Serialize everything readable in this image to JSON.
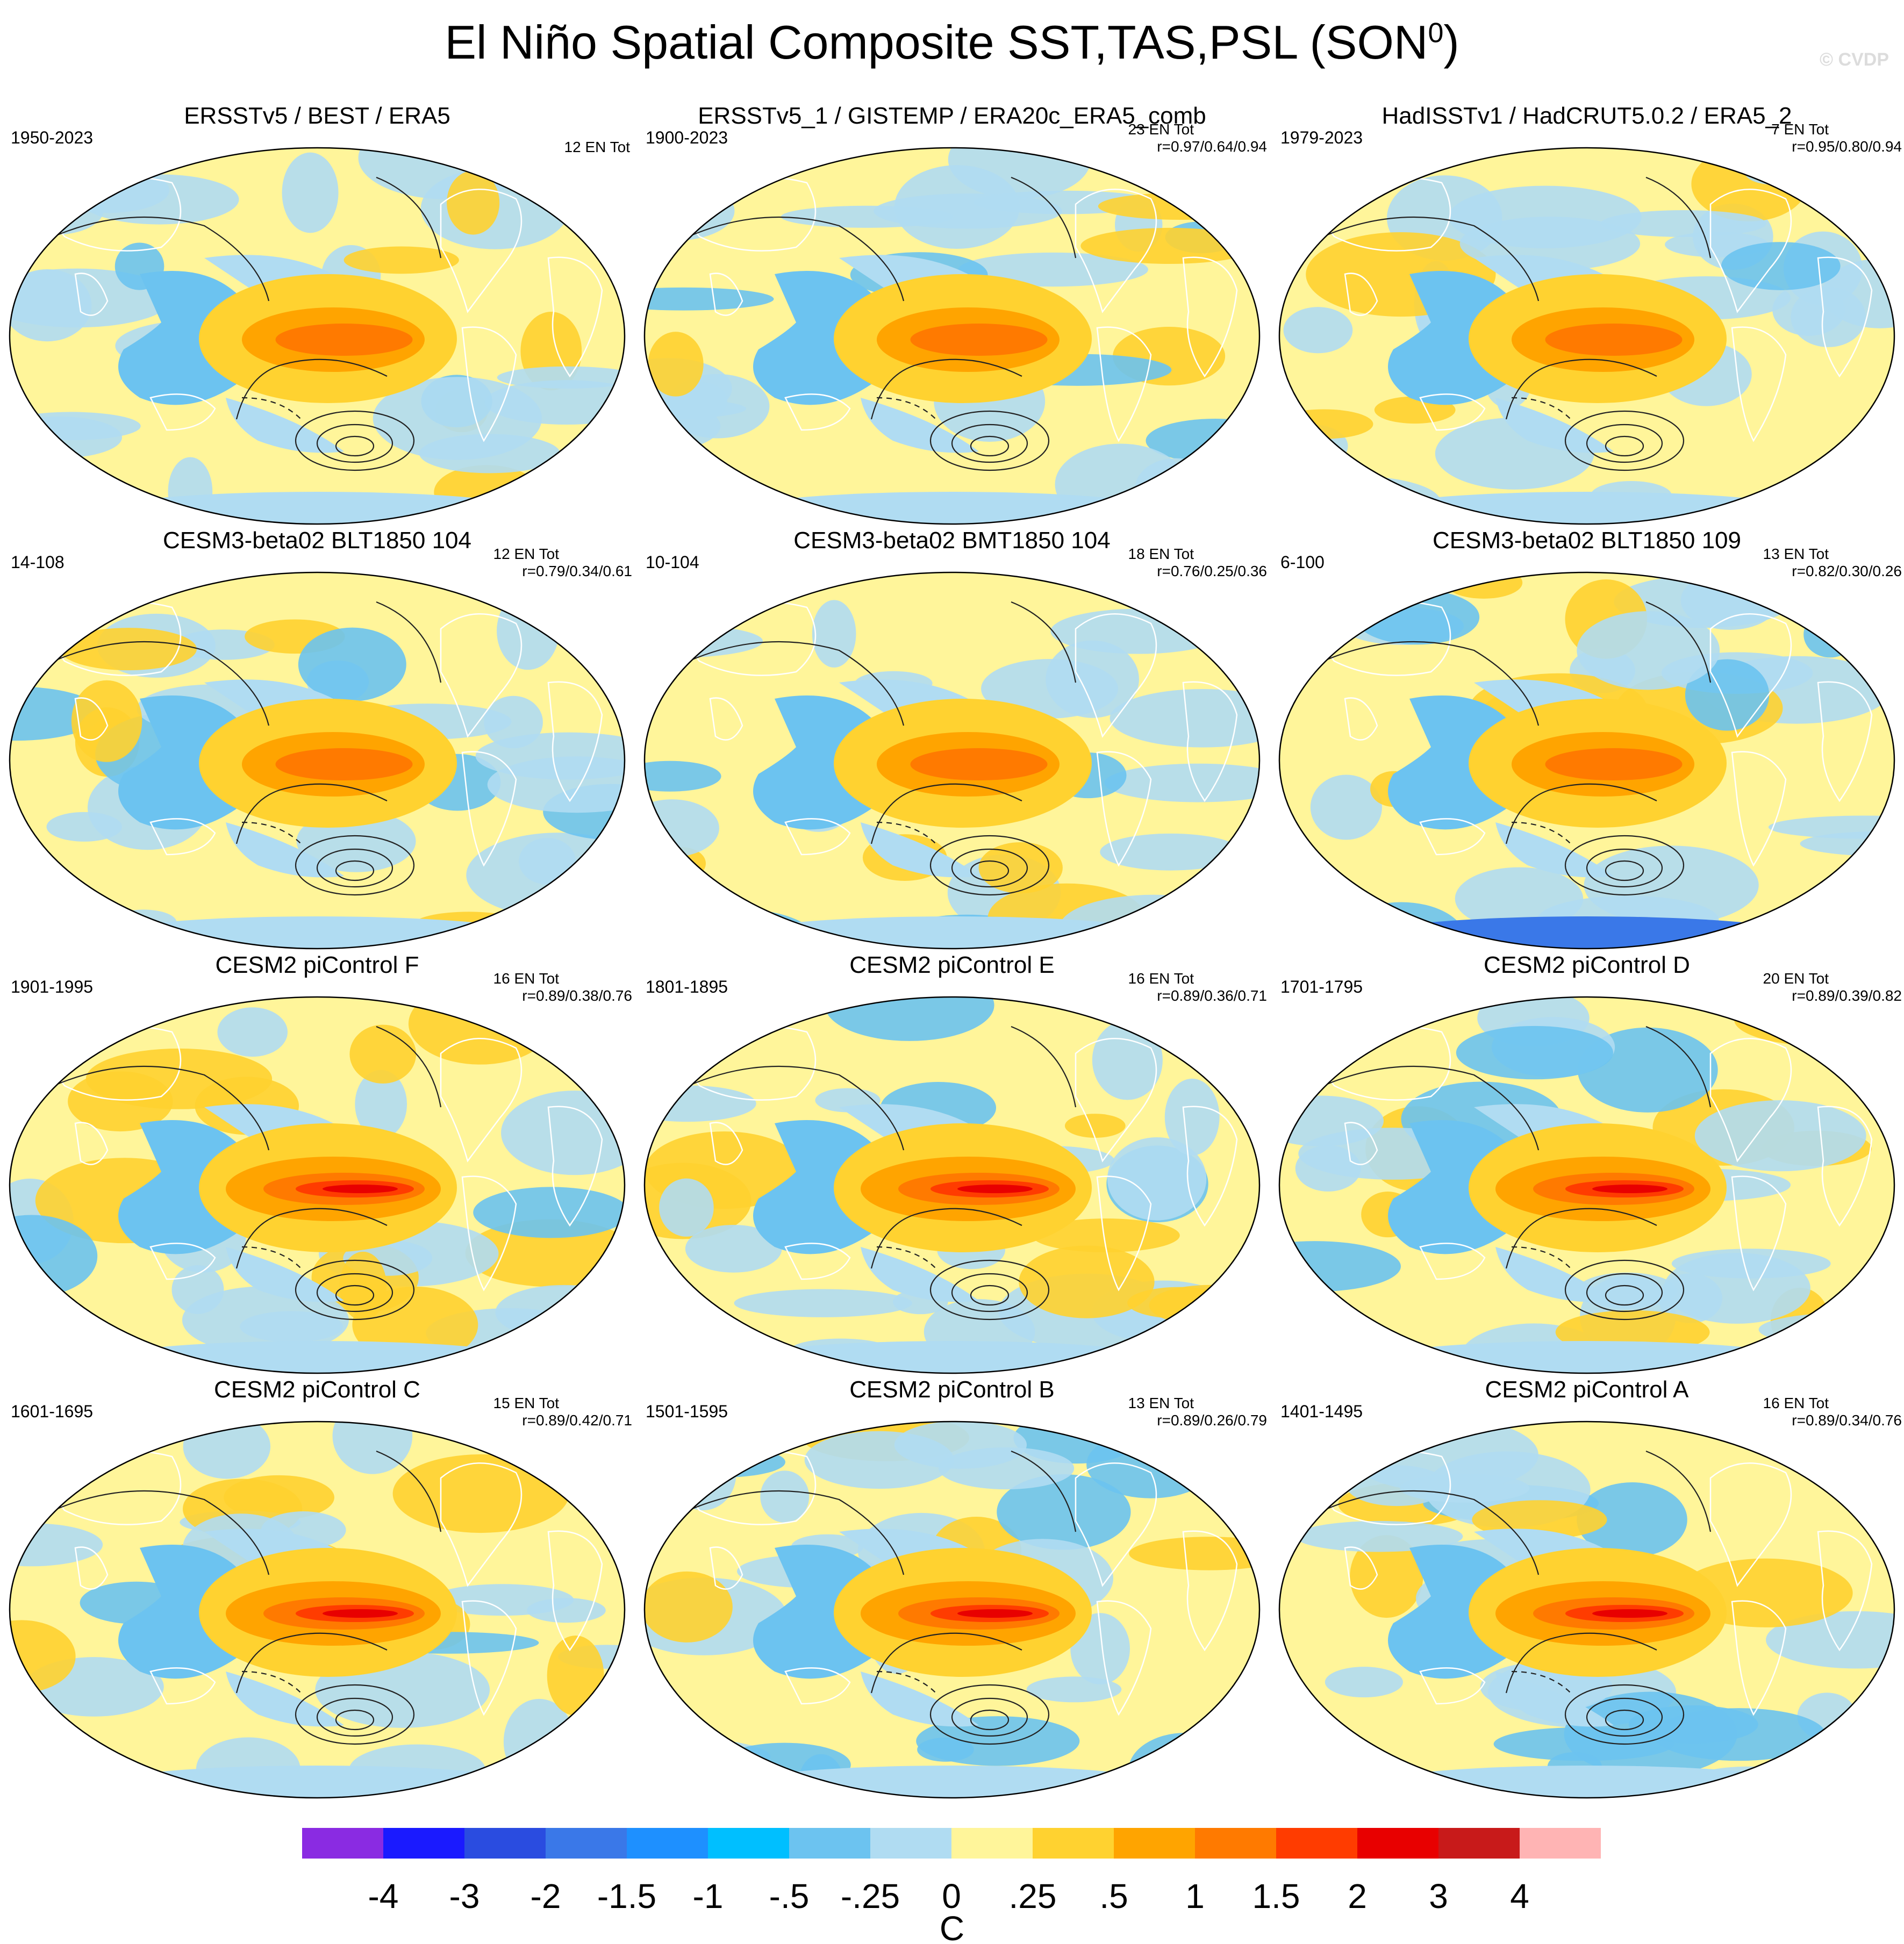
{
  "title": "El Niño Spatial Composite SST,TAS,PSL (SON",
  "title_superscript": "0",
  "title_close": ")",
  "watermark": "© CVDP",
  "chart_data": [
    {
      "type": "heatmap",
      "title": "ERSSTv5 / BEST / ERA5",
      "period": "1950-2023",
      "event_count": "12 EN Tot",
      "pattern_corr": ""
    },
    {
      "type": "heatmap",
      "title": "ERSSTv5_1 / GISTEMP / ERA20c_ERA5_comb",
      "period": "1900-2023",
      "event_count": "23 EN Tot",
      "pattern_corr": "r=0.97/0.64/0.94"
    },
    {
      "type": "heatmap",
      "title": "HadISSTv1 / HadCRUT5.0.2 / ERA5_2",
      "period": "1979-2023",
      "event_count": "7 EN Tot",
      "pattern_corr": "r=0.95/0.80/0.94"
    },
    {
      "type": "heatmap",
      "title": "CESM3-beta02 BLT1850 104",
      "period": "14-108",
      "event_count": "12 EN Tot",
      "pattern_corr": "r=0.79/0.34/0.61"
    },
    {
      "type": "heatmap",
      "title": "CESM3-beta02 BMT1850 104",
      "period": "10-104",
      "event_count": "18 EN Tot",
      "pattern_corr": "r=0.76/0.25/0.36"
    },
    {
      "type": "heatmap",
      "title": "CESM3-beta02 BLT1850 109",
      "period": "6-100",
      "event_count": "13 EN Tot",
      "pattern_corr": "r=0.82/0.30/0.26"
    },
    {
      "type": "heatmap",
      "title": "CESM2 piControl F",
      "period": "1901-1995",
      "event_count": "16 EN Tot",
      "pattern_corr": "r=0.89/0.38/0.76"
    },
    {
      "type": "heatmap",
      "title": "CESM2 piControl E",
      "period": "1801-1895",
      "event_count": "16 EN Tot",
      "pattern_corr": "r=0.89/0.36/0.71"
    },
    {
      "type": "heatmap",
      "title": "CESM2 piControl D",
      "period": "1701-1795",
      "event_count": "20 EN Tot",
      "pattern_corr": "r=0.89/0.39/0.82"
    },
    {
      "type": "heatmap",
      "title": "CESM2 piControl C",
      "period": "1601-1695",
      "event_count": "15 EN Tot",
      "pattern_corr": "r=0.89/0.42/0.71"
    },
    {
      "type": "heatmap",
      "title": "CESM2 piControl B",
      "period": "1501-1595",
      "event_count": "13 EN Tot",
      "pattern_corr": "r=0.89/0.26/0.79"
    },
    {
      "type": "heatmap",
      "title": "CESM2 piControl A",
      "period": "1401-1495",
      "event_count": "16 EN Tot",
      "pattern_corr": "r=0.89/0.34/0.76"
    }
  ],
  "colorbar": {
    "unit": "C",
    "tick_labels": [
      "-4",
      "-3",
      "-2",
      "-1.5",
      "-1",
      "-.5",
      "-.25",
      "0",
      ".25",
      ".5",
      "1",
      "1.5",
      "2",
      "3",
      "4"
    ],
    "colors": [
      "#8a2be2",
      "#1a1aff",
      "#2a4ce0",
      "#3a78e8",
      "#1e90ff",
      "#00bfff",
      "#6cc3f0",
      "#b0dcf2",
      "#fff59a",
      "#ffd230",
      "#ffa400",
      "#ff7a00",
      "#ff3c00",
      "#e80000",
      "#c81a1a",
      "#ffb4b4"
    ]
  }
}
